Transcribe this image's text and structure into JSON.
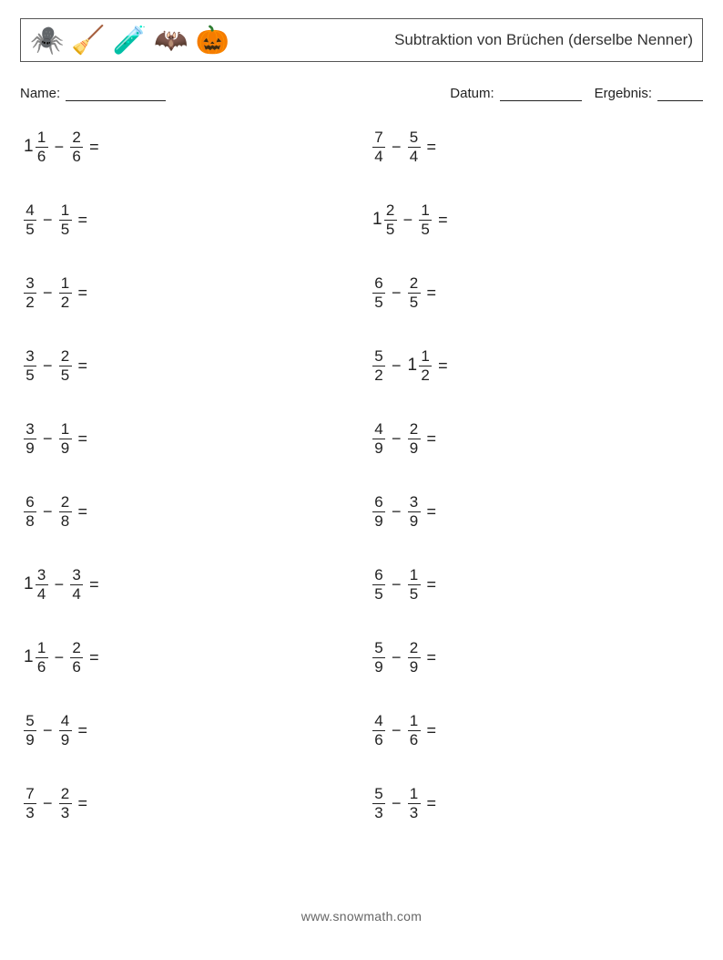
{
  "header": {
    "icons": [
      "🕷️",
      "🧹",
      "🧪",
      "🦇",
      "🎃"
    ],
    "title": "Subtraktion von Brüchen (derselbe Nenner)"
  },
  "meta": {
    "name_label": "Name:",
    "date_label": "Datum:",
    "result_label": "Ergebnis:"
  },
  "style": {
    "background_color": "#ffffff",
    "text_color": "#222222",
    "border_color": "#555555",
    "title_fontsize": 17,
    "problem_fontsize": 19,
    "fraction_fontsize": 17,
    "columns": 2,
    "rows": 10
  },
  "problems": {
    "left": [
      {
        "w1": "1",
        "n1": "1",
        "d1": "6",
        "w2": "",
        "n2": "2",
        "d2": "6"
      },
      {
        "w1": "",
        "n1": "4",
        "d1": "5",
        "w2": "",
        "n2": "1",
        "d2": "5"
      },
      {
        "w1": "",
        "n1": "3",
        "d1": "2",
        "w2": "",
        "n2": "1",
        "d2": "2"
      },
      {
        "w1": "",
        "n1": "3",
        "d1": "5",
        "w2": "",
        "n2": "2",
        "d2": "5"
      },
      {
        "w1": "",
        "n1": "3",
        "d1": "9",
        "w2": "",
        "n2": "1",
        "d2": "9"
      },
      {
        "w1": "",
        "n1": "6",
        "d1": "8",
        "w2": "",
        "n2": "2",
        "d2": "8"
      },
      {
        "w1": "1",
        "n1": "3",
        "d1": "4",
        "w2": "",
        "n2": "3",
        "d2": "4"
      },
      {
        "w1": "1",
        "n1": "1",
        "d1": "6",
        "w2": "",
        "n2": "2",
        "d2": "6"
      },
      {
        "w1": "",
        "n1": "5",
        "d1": "9",
        "w2": "",
        "n2": "4",
        "d2": "9"
      },
      {
        "w1": "",
        "n1": "7",
        "d1": "3",
        "w2": "",
        "n2": "2",
        "d2": "3"
      }
    ],
    "right": [
      {
        "w1": "",
        "n1": "7",
        "d1": "4",
        "w2": "",
        "n2": "5",
        "d2": "4"
      },
      {
        "w1": "1",
        "n1": "2",
        "d1": "5",
        "w2": "",
        "n2": "1",
        "d2": "5"
      },
      {
        "w1": "",
        "n1": "6",
        "d1": "5",
        "w2": "",
        "n2": "2",
        "d2": "5"
      },
      {
        "w1": "",
        "n1": "5",
        "d1": "2",
        "w2": "1",
        "n2": "1",
        "d2": "2"
      },
      {
        "w1": "",
        "n1": "4",
        "d1": "9",
        "w2": "",
        "n2": "2",
        "d2": "9"
      },
      {
        "w1": "",
        "n1": "6",
        "d1": "9",
        "w2": "",
        "n2": "3",
        "d2": "9"
      },
      {
        "w1": "",
        "n1": "6",
        "d1": "5",
        "w2": "",
        "n2": "1",
        "d2": "5"
      },
      {
        "w1": "",
        "n1": "5",
        "d1": "9",
        "w2": "",
        "n2": "2",
        "d2": "9"
      },
      {
        "w1": "",
        "n1": "4",
        "d1": "6",
        "w2": "",
        "n2": "1",
        "d2": "6"
      },
      {
        "w1": "",
        "n1": "5",
        "d1": "3",
        "w2": "",
        "n2": "1",
        "d2": "3"
      }
    ]
  },
  "operator": "−",
  "equals": "=",
  "footer": "www.snowmath.com"
}
